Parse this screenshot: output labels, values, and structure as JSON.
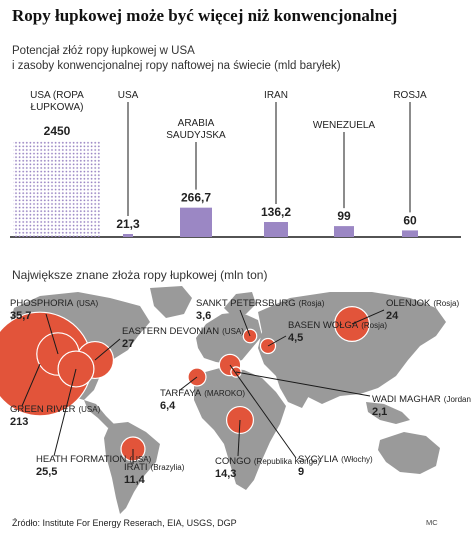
{
  "title": "Ropy łupkowej może być więcej niż konwencjonalnej",
  "footer": "Źródło: Institute For Energy Reserach, EIA, USGS, DGP",
  "credit": "MC",
  "colors": {
    "bar": "#9b87c4",
    "bubble": "#e2543a",
    "map": "#9a9a9a",
    "axis": "#1a1a1a",
    "text": "#222222"
  },
  "chart_data": [
    {
      "type": "bar",
      "title": "Potencjał złóż ropy łupkowej w USA",
      "subtitle": "i zasoby konwencjonalnej ropy naftowej na świecie (mld baryłek)",
      "series": [
        {
          "category": "USA (ROPA ŁUPKOWA)",
          "label_lines": [
            "USA (ROPA",
            "ŁUPKOWA)"
          ],
          "value": 2450,
          "value_label": "2450",
          "style": "dotted"
        },
        {
          "category": "USA",
          "label_lines": [
            "USA"
          ],
          "value": 21.3,
          "value_label": "21,3",
          "style": "solid"
        },
        {
          "category": "ARABIA SAUDYJSKA",
          "label_lines": [
            "ARABIA",
            "SAUDYJSKA"
          ],
          "value": 266.7,
          "value_label": "266,7",
          "style": "solid"
        },
        {
          "category": "IRAN",
          "label_lines": [
            "IRAN"
          ],
          "value": 136.2,
          "value_label": "136,2",
          "style": "solid"
        },
        {
          "category": "WENEZUELA",
          "label_lines": [
            "WENEZUELA"
          ],
          "value": 99,
          "value_label": "99",
          "style": "solid"
        },
        {
          "category": "ROSJA",
          "label_lines": [
            "ROSJA"
          ],
          "value": 60,
          "value_label": "60",
          "style": "solid"
        }
      ],
      "unit": "mld baryłek",
      "scale": "the first (dotted) bar is drawn truncated; the solid bars share one linear scale"
    },
    {
      "type": "bubble-map",
      "title": "Największe znane złoża ropy łupkowej (mln ton)",
      "unit": "mln ton",
      "deposits": [
        {
          "name": "PHOSPHORIA",
          "region": "USA",
          "value": 35.7,
          "value_label": "35,7"
        },
        {
          "name": "EASTERN DEVONIAN",
          "region": "USA",
          "value": 27,
          "value_label": "27"
        },
        {
          "name": "GREEN RIVER",
          "region": "USA",
          "value": 213,
          "value_label": "213"
        },
        {
          "name": "HEATH FORMATION",
          "region": "USA",
          "value": 25.5,
          "value_label": "25,5"
        },
        {
          "name": "IRATI",
          "region": "Brazylia",
          "value": 11.4,
          "value_label": "11,4"
        },
        {
          "name": "TARFAYA",
          "region": "MAROKO",
          "value": 6.4,
          "value_label": "6,4"
        },
        {
          "name": "CONGO",
          "region": "Republika Kongo",
          "value": 14.3,
          "value_label": "14,3"
        },
        {
          "name": "SYCYLIA",
          "region": "Włochy",
          "value": 9,
          "value_label": "9"
        },
        {
          "name": "SANKT PETERSBURG",
          "region": "Rosja",
          "value": 3.6,
          "value_label": "3,6"
        },
        {
          "name": "BASEN WOŁGA",
          "region": "Rosja",
          "value": 4.5,
          "value_label": "4,5"
        },
        {
          "name": "WADI MAGHAR",
          "region": "Jordania",
          "value": 2.1,
          "value_label": "2,1"
        },
        {
          "name": "OLENJOK",
          "region": "Rosja",
          "value": 24,
          "value_label": "24"
        }
      ]
    }
  ]
}
